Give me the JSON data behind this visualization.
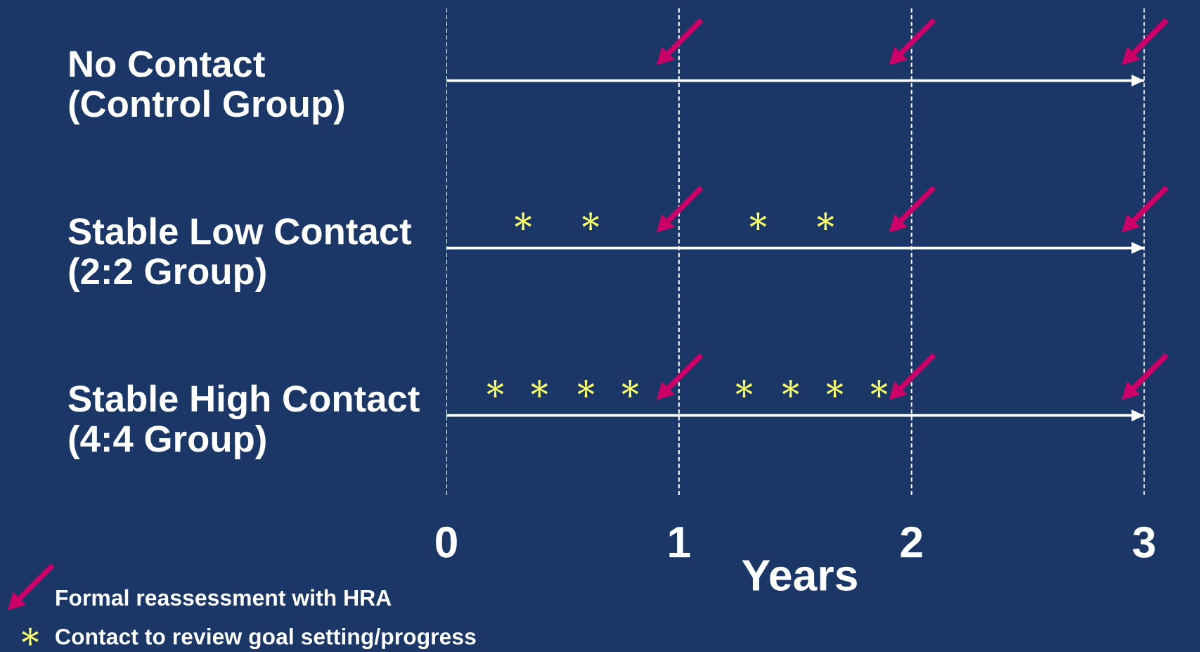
{
  "chart_data": {
    "type": "scatter",
    "orientation": "horizontal",
    "categories": [
      "No Contact\n(Control Group)",
      "Stable Low Contact\n(2:2 Group)",
      "Stable High Contact\n(4:4 Group)"
    ],
    "xlabel": "Years",
    "xlim": [
      0,
      3.24
    ],
    "xticks": [
      0,
      1,
      2,
      3
    ],
    "grid": "x",
    "legend": "bottom left",
    "series": [
      {
        "type": "bar",
        "color": "#ffffff",
        "values": [
          3,
          3,
          3
        ]
      },
      {
        "name": "Formal reassessment with HRA",
        "color": "#cc0066",
        "x": [
          "No Contact\n(Control Group)",
          "No Contact\n(Control Group)",
          "No Contact\n(Control Group)",
          "Stable Low Contact\n(2:2 Group)",
          "Stable Low Contact\n(2:2 Group)",
          "Stable Low Contact\n(2:2 Group)",
          "Stable High Contact\n(4:4 Group)",
          "Stable High Contact\n(4:4 Group)",
          "Stable High Contact\n(4:4 Group)"
        ],
        "values": [
          1,
          2,
          3,
          1,
          2,
          3,
          1,
          2,
          3
        ]
      },
      {
        "name": "Contact to review goal setting/progress",
        "marker": "star",
        "color": "#ffff66",
        "x": [
          "Stable Low Contact\n(2:2 Group)",
          "Stable Low Contact\n(2:2 Group)",
          "Stable Low Contact\n(2:2 Group)",
          "Stable Low Contact\n(2:2 Group)",
          "Stable High Contact\n(4:4 Group)",
          "Stable High Contact\n(4:4 Group)",
          "Stable High Contact\n(4:4 Group)",
          "Stable High Contact\n(4:4 Group)",
          "Stable High Contact\n(4:4 Group)",
          "Stable High Contact\n(4:4 Group)",
          "Stable High Contact\n(4:4 Group)",
          "Stable High Contact\n(4:4 Group)"
        ],
        "values": [
          0.33,
          0.62,
          1.34,
          1.63,
          0.21,
          0.4,
          0.6,
          0.79,
          1.28,
          1.48,
          1.67,
          1.86
        ]
      }
    ]
  }
}
